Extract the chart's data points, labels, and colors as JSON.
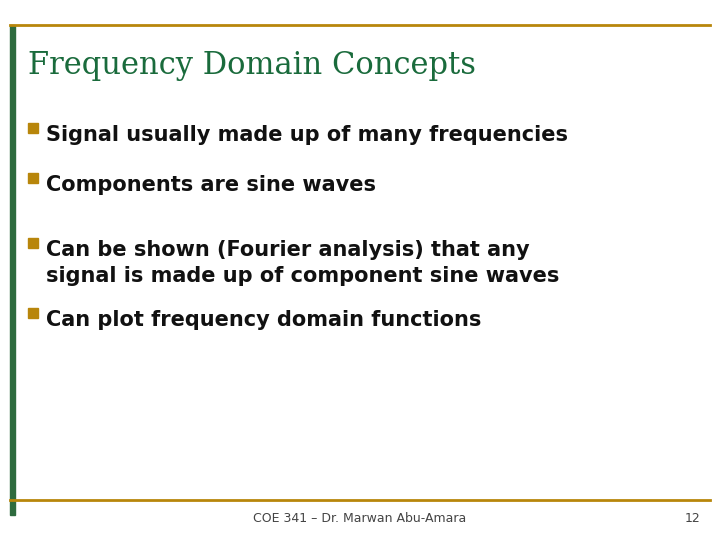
{
  "title": "Frequency Domain Concepts",
  "title_color": "#1a6b3c",
  "title_fontsize": 22,
  "bullet_color": "#b8860b",
  "bullet_text_color": "#111111",
  "bullet_fontsize": 15,
  "bullets": [
    "Signal usually made up of many frequencies",
    "Components are sine waves",
    "Can be shown (Fourier analysis) that any\nsignal is made up of component sine waves",
    "Can plot frequency domain functions"
  ],
  "footer_text": "COE 341 – Dr. Marwan Abu-Amara",
  "footer_page": "12",
  "footer_fontsize": 9,
  "background_color": "#ffffff",
  "border_color": "#b8860b",
  "left_bar_color": "#2e6b3e"
}
